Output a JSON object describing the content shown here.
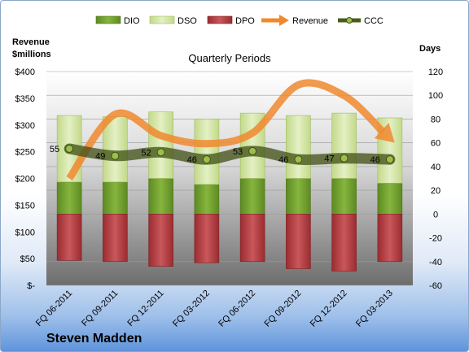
{
  "company": "Steven Madden",
  "chart_data": {
    "type": "bar",
    "title": "Quarterly Periods",
    "ylabel_left": "Revenue\n$millions",
    "ylabel_right": "Days",
    "categories": [
      "FQ 06-2011",
      "FQ 09-2011",
      "FQ 12-2011",
      "FQ 03-2012",
      "FQ 06-2012",
      "FQ 09-2012",
      "FQ 12-2012",
      "FQ 03-2013"
    ],
    "left_axis": {
      "min": 0,
      "max": 400,
      "step": 50,
      "ticks": [
        "$-",
        "$50",
        "$100",
        "$150",
        "$200",
        "$250",
        "$300",
        "$350",
        "$400"
      ]
    },
    "right_axis": {
      "min": -60,
      "max": 120,
      "step": 20,
      "ticks": [
        "-60",
        "-40",
        "-20",
        "0",
        "20",
        "40",
        "60",
        "80",
        "100",
        "120"
      ]
    },
    "series": [
      {
        "name": "DIO",
        "axis": "right",
        "kind": "stacked-bar",
        "values": [
          27,
          27,
          30,
          25,
          30,
          30,
          30,
          26
        ]
      },
      {
        "name": "DSO",
        "axis": "right",
        "kind": "stacked-bar",
        "values": [
          56,
          55,
          56,
          55,
          55,
          53,
          55,
          55
        ]
      },
      {
        "name": "DPO",
        "axis": "right",
        "kind": "stacked-bar-negative",
        "values": [
          -39,
          -40,
          -44,
          -41,
          -40,
          -46,
          -48,
          -40
        ]
      },
      {
        "name": "Revenue",
        "axis": "left",
        "kind": "arrow-line",
        "values": [
          200,
          320,
          280,
          265,
          285,
          375,
          355,
          275
        ]
      },
      {
        "name": "CCC",
        "axis": "right",
        "kind": "line-markers",
        "values": [
          55,
          49,
          52,
          46,
          53,
          46,
          47,
          46
        ]
      }
    ],
    "data_labels": [
      "55",
      "49",
      "52",
      "46",
      "53",
      "46",
      "47",
      "46"
    ],
    "legend": "top",
    "colors": {
      "DIO": "#6f9a2e",
      "DSO": "#d3e5a4",
      "DPO": "#b33a3e",
      "Revenue": "#f0882e",
      "CCC": "#5a6e25"
    },
    "plot_background": "gradient-gray"
  }
}
